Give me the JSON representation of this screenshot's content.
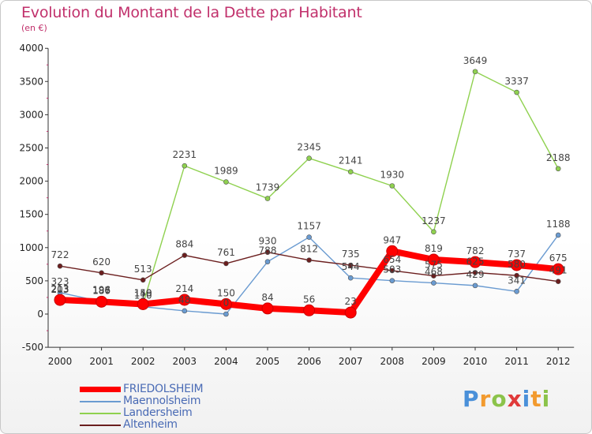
{
  "title": "Evolution du Montant de la Dette par Habitant",
  "subtitle": "(en €)",
  "logo": {
    "letters": [
      "P",
      "r",
      "o",
      "x",
      "i",
      "t",
      "i"
    ],
    "colors": [
      "#4a90d9",
      "#f29a2e",
      "#8bc34a",
      "#e03a3a",
      "#4a90d9",
      "#f29a2e",
      "#8bc34a"
    ]
  },
  "chart_data": {
    "type": "line",
    "categories": [
      "2000",
      "2001",
      "2002",
      "2003",
      "2004",
      "2005",
      "2006",
      "2007",
      "2008",
      "2009",
      "2010",
      "2011",
      "2012"
    ],
    "ylim": [
      -500,
      4000
    ],
    "yticks": [
      "-500",
      "0",
      "500",
      "1000",
      "1500",
      "2000",
      "2500",
      "3000",
      "3500",
      "4000"
    ],
    "grid": false,
    "legend_position": "bottom-left",
    "series": [
      {
        "name": "FRIEDOLSHEIM",
        "color": "#ff0000",
        "values": [
          213,
          186,
          149,
          214,
          150,
          84,
          56,
          23,
          947,
          819,
          782,
          737,
          675
        ]
      },
      {
        "name": "Maennolsheim",
        "color": "#6a9bd1",
        "values": [
          323,
          187,
          110,
          48,
          0,
          788,
          1157,
          544,
          503,
          468,
          429,
          341,
          1188
        ]
      },
      {
        "name": "Landersheim",
        "color": "#8fd14f",
        "values": [
          203,
          196,
          150,
          2231,
          1989,
          1739,
          2345,
          2141,
          1930,
          1237,
          3649,
          3337,
          2188
        ]
      },
      {
        "name": "Altenheim",
        "color": "#6b1e1e",
        "values": [
          722,
          620,
          513,
          884,
          761,
          930,
          812,
          735,
          654,
          575,
          625,
          580,
          491
        ]
      }
    ]
  }
}
